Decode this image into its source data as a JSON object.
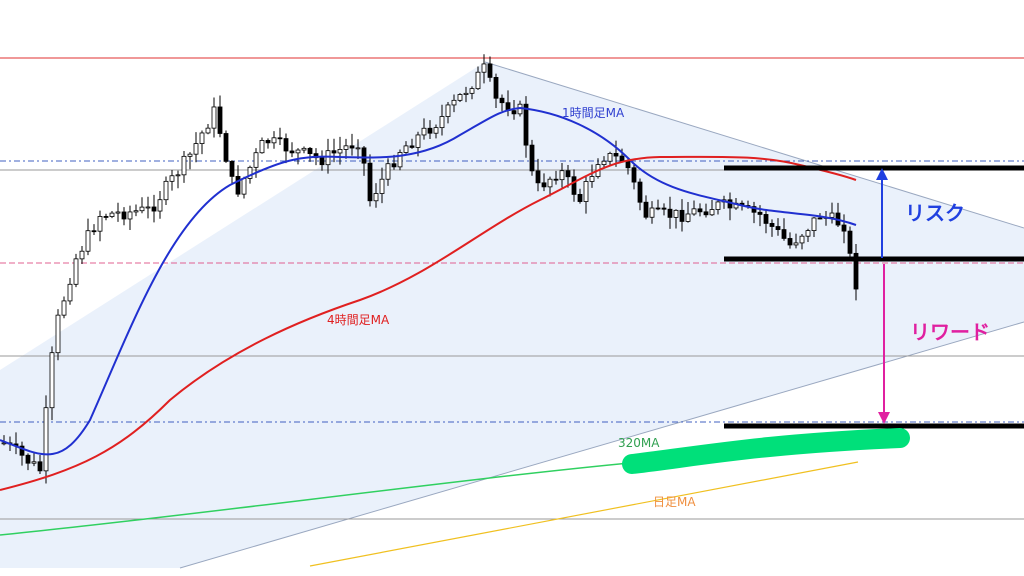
{
  "annotations": {
    "ma_1h": "1時間足MA",
    "ma_4h": "4時間足MA",
    "ma_320": "320MA",
    "ma_daily": "日足MA",
    "risk": "リスク",
    "reward": "リワード"
  }
}
